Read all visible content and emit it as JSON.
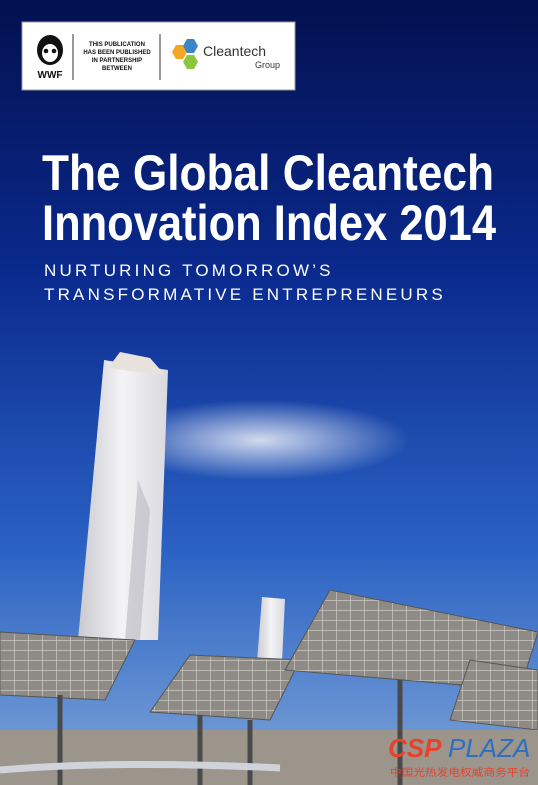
{
  "header": {
    "partnership": [
      "THIS PUBLICATION",
      "HAS BEEN PUBLISHED",
      "IN PARTNERSHIP",
      "BETWEEN"
    ],
    "wwf": "WWF",
    "cleantech": "Cleantech",
    "group": "Group"
  },
  "title": [
    "The Global Cleantech",
    "Innovation Index 2014"
  ],
  "subtitle": [
    "NURTURING TOMORROW’S",
    "TRANSFORMATIVE ENTREPRENEURS"
  ],
  "watermark": {
    "csp": "CSP",
    "plaza": "PLAZA",
    "tagline": "中国光热发电权威商务平台"
  }
}
